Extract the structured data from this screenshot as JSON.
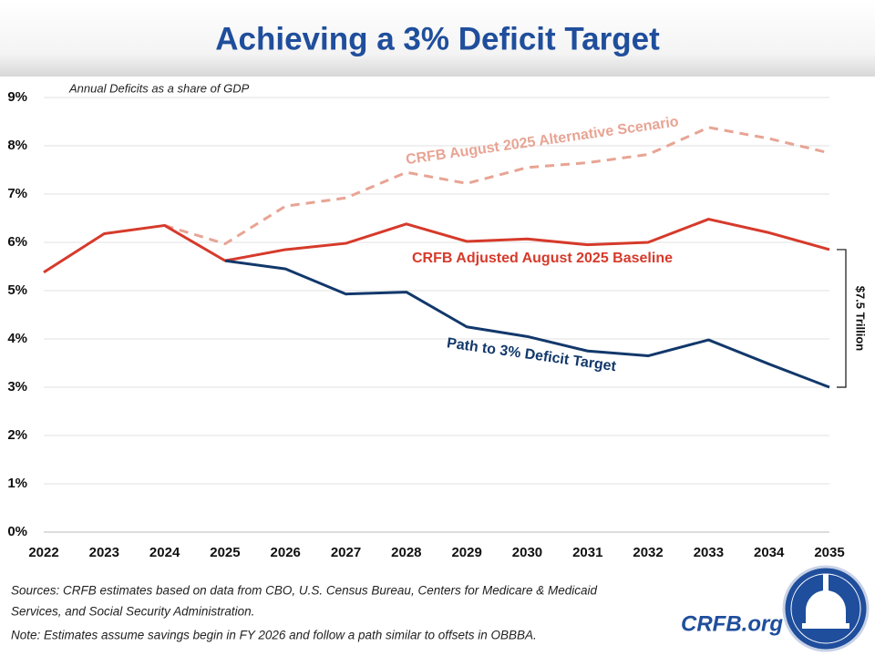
{
  "chart_data": {
    "type": "line",
    "title": "Achieving a 3% Deficit Target",
    "subtitle": "Annual Deficits as a share of GDP",
    "x": [
      2022,
      2023,
      2024,
      2025,
      2026,
      2027,
      2028,
      2029,
      2030,
      2031,
      2032,
      2033,
      2034,
      2035
    ],
    "xlim": [
      2022,
      2035
    ],
    "xticks": [
      2022,
      2023,
      2024,
      2025,
      2026,
      2027,
      2028,
      2029,
      2030,
      2031,
      2032,
      2033,
      2034,
      2035
    ],
    "ylim": [
      0,
      9
    ],
    "yticks": [
      {
        "value": 0,
        "label": "0%"
      },
      {
        "value": 1,
        "label": "1%"
      },
      {
        "value": 2,
        "label": "2%"
      },
      {
        "value": 3,
        "label": "3%"
      },
      {
        "value": 4,
        "label": "4%"
      },
      {
        "value": 5,
        "label": "5%"
      },
      {
        "value": 6,
        "label": "6%"
      },
      {
        "value": 7,
        "label": "7%"
      },
      {
        "value": 8,
        "label": "8%"
      },
      {
        "value": 9,
        "label": "9%"
      }
    ],
    "grid": true,
    "series": [
      {
        "name": "CRFB August 2025 Alternative Scenario",
        "color": "#e8a494",
        "style": "dashed",
        "values": [
          null,
          null,
          6.35,
          5.97,
          6.75,
          6.92,
          7.45,
          7.22,
          7.55,
          7.65,
          7.82,
          8.38,
          8.15,
          7.85
        ]
      },
      {
        "name": "CRFB Adjusted August 2025 Baseline",
        "color": "#d63a2b",
        "style": "solid",
        "values": [
          5.38,
          6.18,
          6.35,
          5.62,
          5.85,
          5.98,
          6.38,
          6.02,
          6.07,
          5.95,
          6.0,
          6.48,
          6.2,
          5.85
        ]
      },
      {
        "name": "Path to 3% Deficit Target",
        "color": "#12386b",
        "style": "solid",
        "values": [
          null,
          null,
          null,
          5.62,
          5.45,
          4.93,
          4.97,
          4.25,
          4.05,
          3.75,
          3.65,
          3.98,
          3.48,
          3.0
        ]
      }
    ],
    "annotation": "$7.5 Trillion",
    "sources": [
      "Sources: CRFB estimates based on data from CBO, U.S. Census Bureau, Centers for Medicare & Medicaid",
      "Services, and Social Security Administration."
    ],
    "note": "Note: Estimates assume savings begin in FY 2026 and follow a path similar to offsets in OBBBA.",
    "brand": "CRFB.org"
  }
}
